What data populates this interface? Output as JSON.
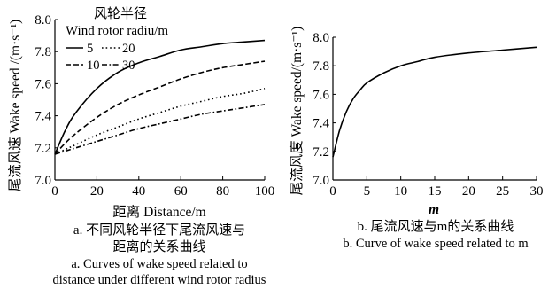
{
  "chart_data": [
    {
      "type": "line",
      "panel": "a",
      "xlabel": "距离 Distance/m",
      "ylabel": "尾流风速 Wake speed /(m·s⁻¹)",
      "xlim": [
        0,
        100
      ],
      "ylim": [
        7.0,
        8.0
      ],
      "xticks": [
        "0",
        "20",
        "40",
        "60",
        "80",
        "100"
      ],
      "yticks": [
        "7.0",
        "7.2",
        "7.4",
        "7.6",
        "7.8",
        "8.0"
      ],
      "legend": {
        "title_cn": "风轮半径",
        "title_en": "Wind rotor radiu/m",
        "placement": "top-left"
      },
      "series": [
        {
          "name": "5",
          "style": "solid",
          "x": [
            0,
            5,
            10,
            20,
            30,
            40,
            50,
            60,
            70,
            80,
            90,
            100
          ],
          "y": [
            7.16,
            7.31,
            7.42,
            7.57,
            7.67,
            7.73,
            7.77,
            7.81,
            7.83,
            7.85,
            7.86,
            7.87
          ]
        },
        {
          "name": "10",
          "style": "dashed",
          "x": [
            0,
            5,
            10,
            20,
            30,
            40,
            50,
            60,
            70,
            80,
            90,
            100
          ],
          "y": [
            7.16,
            7.23,
            7.29,
            7.39,
            7.47,
            7.53,
            7.58,
            7.63,
            7.67,
            7.7,
            7.72,
            7.74
          ]
        },
        {
          "name": "20",
          "style": "dotted",
          "x": [
            0,
            5,
            10,
            20,
            30,
            40,
            50,
            60,
            70,
            80,
            90,
            100
          ],
          "y": [
            7.16,
            7.19,
            7.22,
            7.28,
            7.33,
            7.38,
            7.42,
            7.46,
            7.49,
            7.52,
            7.54,
            7.57
          ]
        },
        {
          "name": "30",
          "style": "dashdot",
          "x": [
            0,
            5,
            10,
            20,
            30,
            40,
            50,
            60,
            70,
            80,
            90,
            100
          ],
          "y": [
            7.16,
            7.18,
            7.2,
            7.24,
            7.28,
            7.32,
            7.35,
            7.38,
            7.41,
            7.43,
            7.45,
            7.47
          ]
        }
      ],
      "caption_cn": [
        "a. 不同风轮半径下尾流风速与",
        "距离的关系曲线"
      ],
      "caption_en": [
        "a. Curves of wake speed related to",
        "distance under different wind rotor radius"
      ]
    },
    {
      "type": "line",
      "panel": "b",
      "xlabel": "m",
      "ylabel": "尾流风度 Wake speed/(m·s⁻¹)",
      "xlim": [
        0,
        30
      ],
      "ylim": [
        7.0,
        8.0
      ],
      "xticks": [
        "0",
        "5",
        "10",
        "15",
        "20",
        "25",
        "30"
      ],
      "yticks": [
        "7.0",
        "7.2",
        "7.4",
        "7.6",
        "7.8",
        "8.0"
      ],
      "series": [
        {
          "style": "solid",
          "x": [
            0,
            1,
            2,
            3,
            4,
            5,
            7.5,
            10,
            12.5,
            15,
            20,
            25,
            30
          ],
          "y": [
            7.16,
            7.35,
            7.48,
            7.57,
            7.63,
            7.68,
            7.75,
            7.8,
            7.83,
            7.86,
            7.89,
            7.91,
            7.93
          ]
        }
      ],
      "caption_cn": "b. 尾流风速与m的关系曲线",
      "caption_en": "b. Curve of wake speed related to m"
    }
  ]
}
